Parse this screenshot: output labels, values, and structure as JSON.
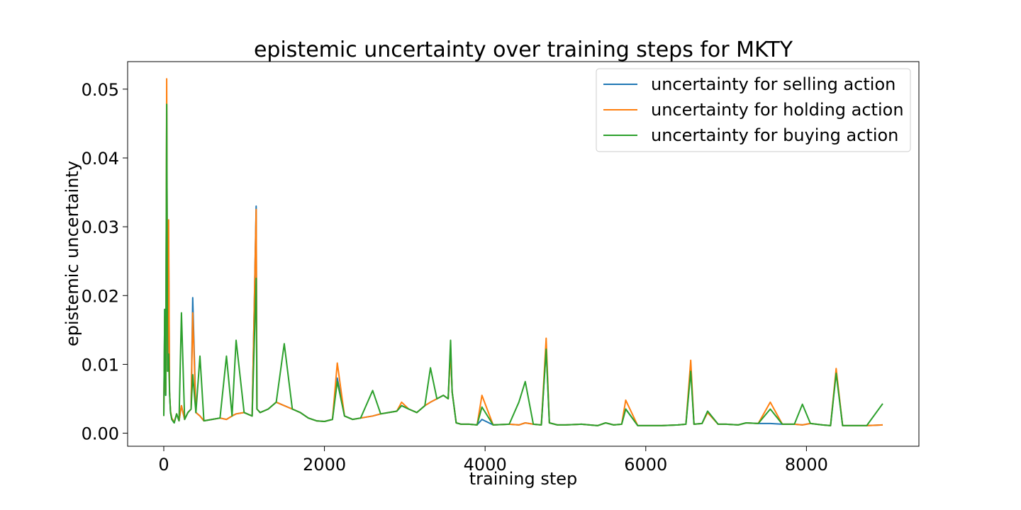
{
  "chart_data": {
    "type": "line",
    "title": "epistemic uncertainty over training steps for MKTY",
    "xlabel": "training step",
    "ylabel": "epistemic uncertainty",
    "xlim": [
      -450,
      9400
    ],
    "ylim": [
      -0.0019,
      0.054
    ],
    "xticks": [
      0,
      2000,
      4000,
      6000,
      8000
    ],
    "xtick_labels": [
      "0",
      "2000",
      "4000",
      "6000",
      "8000"
    ],
    "yticks": [
      0.0,
      0.01,
      0.02,
      0.03,
      0.04,
      0.05
    ],
    "ytick_labels": [
      "0.00",
      "0.01",
      "0.02",
      "0.03",
      "0.04",
      "0.05"
    ],
    "grid": false,
    "legend_position": "top-right",
    "series": [
      {
        "name": "uncertainty for selling action",
        "color": "#1f77b4",
        "x": [
          0,
          12,
          24,
          36,
          48,
          60,
          72,
          84,
          100,
          130,
          160,
          190,
          220,
          260,
          300,
          340,
          360,
          400,
          450,
          500,
          600,
          700,
          780,
          850,
          900,
          1000,
          1100,
          1150,
          1160,
          1200,
          1300,
          1400,
          1500,
          1600,
          1700,
          1800,
          1900,
          2000,
          2100,
          2160,
          2250,
          2350,
          2450,
          2600,
          2700,
          2800,
          2900,
          2960,
          3050,
          3150,
          3250,
          3320,
          3400,
          3480,
          3540,
          3570,
          3590,
          3640,
          3700,
          3800,
          3900,
          3960,
          4100,
          4300,
          4420,
          4500,
          4600,
          4700,
          4760,
          4800,
          4900,
          5000,
          5200,
          5400,
          5500,
          5600,
          5700,
          5750,
          5900,
          6000,
          6100,
          6200,
          6400,
          6500,
          6560,
          6600,
          6700,
          6770,
          6900,
          7000,
          7150,
          7250,
          7400,
          7550,
          7700,
          7850,
          7950,
          8050,
          8200,
          8300,
          8370,
          8450,
          8600,
          8750,
          8950
        ],
        "y": [
          0.0025,
          0.018,
          0.0055,
          0.0478,
          0.009,
          0.028,
          0.006,
          0.003,
          0.002,
          0.0015,
          0.0028,
          0.0018,
          0.004,
          0.002,
          0.003,
          0.0035,
          0.0197,
          0.003,
          0.0025,
          0.0018,
          0.002,
          0.0022,
          0.002,
          0.0025,
          0.0028,
          0.003,
          0.0025,
          0.033,
          0.0035,
          0.003,
          0.0035,
          0.0045,
          0.004,
          0.0035,
          0.003,
          0.0022,
          0.0018,
          0.0017,
          0.002,
          0.008,
          0.0025,
          0.002,
          0.0022,
          0.0025,
          0.0028,
          0.003,
          0.0032,
          0.004,
          0.0035,
          0.003,
          0.004,
          0.0045,
          0.005,
          0.0055,
          0.005,
          0.0125,
          0.006,
          0.0015,
          0.0013,
          0.0013,
          0.0012,
          0.002,
          0.0012,
          0.0013,
          0.0012,
          0.0015,
          0.0013,
          0.0012,
          0.0125,
          0.0015,
          0.0012,
          0.0012,
          0.0013,
          0.0011,
          0.0015,
          0.0012,
          0.0013,
          0.0035,
          0.0011,
          0.0011,
          0.0011,
          0.0011,
          0.0012,
          0.0013,
          0.0095,
          0.0013,
          0.0014,
          0.0032,
          0.0013,
          0.0013,
          0.0012,
          0.0015,
          0.0014,
          0.0014,
          0.0013,
          0.0013,
          0.0012,
          0.0014,
          0.0012,
          0.0011,
          0.009,
          0.0011,
          0.0011,
          0.0011,
          0.0012
        ]
      },
      {
        "name": "uncertainty for holding action",
        "color": "#ff7f0e",
        "x": [
          0,
          12,
          24,
          36,
          48,
          60,
          72,
          84,
          100,
          130,
          160,
          190,
          220,
          260,
          300,
          340,
          360,
          400,
          450,
          500,
          600,
          700,
          780,
          850,
          900,
          1000,
          1100,
          1150,
          1160,
          1200,
          1300,
          1400,
          1500,
          1600,
          1700,
          1800,
          1900,
          2000,
          2100,
          2160,
          2250,
          2350,
          2450,
          2600,
          2700,
          2800,
          2900,
          2960,
          3050,
          3150,
          3250,
          3320,
          3400,
          3480,
          3540,
          3570,
          3590,
          3640,
          3700,
          3800,
          3900,
          3960,
          4100,
          4300,
          4420,
          4500,
          4600,
          4700,
          4760,
          4800,
          4900,
          5000,
          5200,
          5400,
          5500,
          5600,
          5700,
          5750,
          5900,
          6000,
          6100,
          6200,
          6400,
          6500,
          6560,
          6600,
          6700,
          6770,
          6900,
          7000,
          7150,
          7250,
          7400,
          7550,
          7700,
          7850,
          7950,
          8050,
          8200,
          8300,
          8370,
          8450,
          8600,
          8750,
          8950
        ],
        "y": [
          0.0025,
          0.017,
          0.006,
          0.0515,
          0.009,
          0.031,
          0.006,
          0.0032,
          0.0022,
          0.0016,
          0.0028,
          0.0018,
          0.004,
          0.002,
          0.003,
          0.0035,
          0.0175,
          0.003,
          0.0025,
          0.0018,
          0.002,
          0.0022,
          0.002,
          0.0025,
          0.0028,
          0.003,
          0.0025,
          0.0325,
          0.0035,
          0.003,
          0.0035,
          0.0045,
          0.004,
          0.0035,
          0.003,
          0.0022,
          0.0018,
          0.0017,
          0.002,
          0.0102,
          0.0025,
          0.002,
          0.0022,
          0.0025,
          0.0028,
          0.003,
          0.0032,
          0.0045,
          0.0035,
          0.003,
          0.004,
          0.0045,
          0.005,
          0.0055,
          0.005,
          0.012,
          0.006,
          0.0015,
          0.0013,
          0.0013,
          0.0012,
          0.0055,
          0.0012,
          0.0013,
          0.0012,
          0.0015,
          0.0013,
          0.0012,
          0.0138,
          0.0015,
          0.0012,
          0.0012,
          0.0013,
          0.0011,
          0.0015,
          0.0012,
          0.0013,
          0.0048,
          0.0011,
          0.0011,
          0.0011,
          0.0011,
          0.0012,
          0.0013,
          0.0106,
          0.0013,
          0.0014,
          0.003,
          0.0013,
          0.0013,
          0.0012,
          0.0015,
          0.0014,
          0.0045,
          0.0013,
          0.0013,
          0.0012,
          0.0014,
          0.0012,
          0.0011,
          0.0094,
          0.0011,
          0.0011,
          0.0011,
          0.0012
        ]
      },
      {
        "name": "uncertainty for buying action",
        "color": "#2ca02c",
        "x": [
          0,
          12,
          24,
          36,
          48,
          60,
          72,
          84,
          100,
          130,
          160,
          190,
          220,
          260,
          300,
          340,
          360,
          400,
          450,
          500,
          600,
          700,
          780,
          850,
          900,
          1000,
          1100,
          1150,
          1160,
          1200,
          1300,
          1400,
          1500,
          1600,
          1700,
          1800,
          1900,
          2000,
          2100,
          2160,
          2250,
          2350,
          2450,
          2600,
          2700,
          2800,
          2900,
          2960,
          3050,
          3150,
          3250,
          3320,
          3400,
          3480,
          3540,
          3570,
          3590,
          3640,
          3700,
          3800,
          3900,
          3960,
          4100,
          4300,
          4420,
          4500,
          4600,
          4700,
          4760,
          4800,
          4900,
          5000,
          5200,
          5400,
          5500,
          5600,
          5700,
          5750,
          5900,
          6000,
          6100,
          6200,
          6400,
          6500,
          6560,
          6600,
          6700,
          6770,
          6900,
          7000,
          7150,
          7250,
          7400,
          7550,
          7700,
          7850,
          7950,
          8050,
          8200,
          8300,
          8370,
          8450,
          8600,
          8750,
          8950
        ],
        "y": [
          0.0025,
          0.018,
          0.0055,
          0.0478,
          0.009,
          0.0115,
          0.006,
          0.003,
          0.002,
          0.0015,
          0.0028,
          0.0018,
          0.0175,
          0.002,
          0.003,
          0.0035,
          0.0085,
          0.003,
          0.0112,
          0.0018,
          0.002,
          0.0022,
          0.0112,
          0.0025,
          0.0135,
          0.003,
          0.0025,
          0.0225,
          0.0035,
          0.003,
          0.0035,
          0.0045,
          0.013,
          0.0035,
          0.003,
          0.0022,
          0.0018,
          0.0017,
          0.002,
          0.0075,
          0.0025,
          0.002,
          0.0022,
          0.0062,
          0.0028,
          0.003,
          0.0032,
          0.004,
          0.0035,
          0.003,
          0.004,
          0.0095,
          0.005,
          0.0055,
          0.005,
          0.0135,
          0.006,
          0.0015,
          0.0013,
          0.0013,
          0.0012,
          0.0038,
          0.0012,
          0.0013,
          0.0045,
          0.0075,
          0.0013,
          0.0012,
          0.0122,
          0.0015,
          0.0012,
          0.0012,
          0.0013,
          0.0011,
          0.0015,
          0.0012,
          0.0013,
          0.0035,
          0.0011,
          0.0011,
          0.0011,
          0.0011,
          0.0012,
          0.0013,
          0.009,
          0.0013,
          0.0014,
          0.0032,
          0.0013,
          0.0013,
          0.0012,
          0.0015,
          0.0014,
          0.0035,
          0.0013,
          0.0013,
          0.0042,
          0.0014,
          0.0012,
          0.0011,
          0.0087,
          0.0011,
          0.0011,
          0.0011,
          0.0043
        ]
      }
    ]
  }
}
